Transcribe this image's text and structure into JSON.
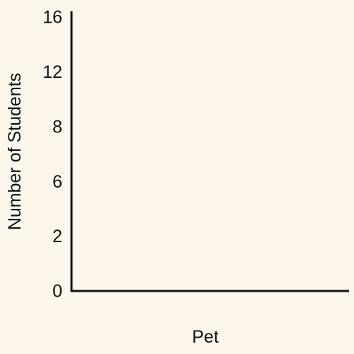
{
  "chart_data": {
    "type": "bar",
    "title": "",
    "xlabel": "Pet",
    "ylabel": "Number of Students",
    "ytick_labels": [
      "0",
      "2",
      "6",
      "8",
      "12",
      "16"
    ],
    "ylim": [
      0,
      16
    ],
    "categories": [],
    "values": [],
    "grid": false,
    "legend": "none"
  },
  "colors": {
    "background": "#fdf6ec",
    "axis": "#111111",
    "text": "#111111"
  }
}
